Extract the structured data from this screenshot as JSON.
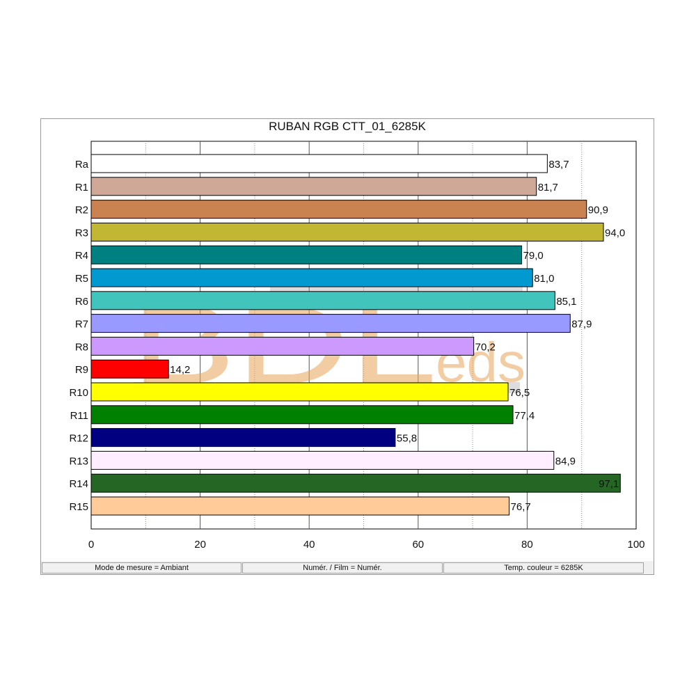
{
  "chart_data": {
    "type": "bar",
    "orientation": "horizontal",
    "title": "RUBAN RGB CTT_01_6285K",
    "categories": [
      "Ra",
      "R1",
      "R2",
      "R3",
      "R4",
      "R5",
      "R6",
      "R7",
      "R8",
      "R9",
      "R10",
      "R11",
      "R12",
      "R13",
      "R14",
      "R15"
    ],
    "values": [
      83.7,
      81.7,
      90.9,
      94.0,
      79.0,
      81.0,
      85.1,
      87.9,
      70.2,
      14.2,
      76.5,
      77.4,
      55.8,
      84.9,
      97.1,
      76.7
    ],
    "value_labels": [
      "83,7",
      "81,7",
      "90,9",
      "94,0",
      "79,0",
      "81,0",
      "85,1",
      "87,9",
      "70,2",
      "14,2",
      "76,5",
      "77,4",
      "55,8",
      "84,9",
      "97,1",
      "76,7"
    ],
    "colors": [
      "#ffffff",
      "#cfa898",
      "#c98250",
      "#c1b733",
      "#008080",
      "#0099d0",
      "#40c4bc",
      "#9999ff",
      "#cc99ff",
      "#ff0000",
      "#ffff00",
      "#008000",
      "#000080",
      "#ffeeff",
      "#256625",
      "#ffcc99"
    ],
    "xlim": [
      0,
      100
    ],
    "xticks": [
      0,
      20,
      40,
      60,
      80,
      100
    ],
    "xgrid": [
      10,
      20,
      30,
      40,
      50,
      60,
      70,
      80,
      90
    ],
    "grid": true,
    "xlabel": "",
    "ylabel": ""
  },
  "watermark": {
    "main": "BDL",
    "sub": "eds",
    "color": "#e9a55a"
  },
  "status_bar": [
    "Mode de mesure = Ambiant",
    "Numér. / Film = Numér.",
    "Temp. couleur = 6285K"
  ]
}
